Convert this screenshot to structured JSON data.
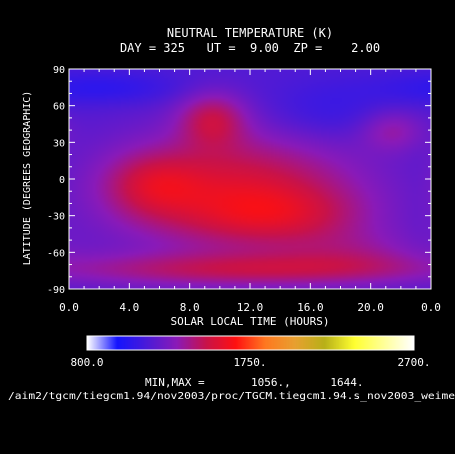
{
  "chart_data": {
    "type": "heatmap",
    "title": "NEUTRAL TEMPERATURE (K)",
    "subtitle": "DAY = 325   UT =  9.00  ZP =    2.00",
    "xlabel": "SOLAR LOCAL TIME (HOURS)",
    "ylabel": "LATITUDE (DEGREES GEOGRAPHIC)",
    "xlim": [
      0,
      24
    ],
    "ylim": [
      -90,
      90
    ],
    "x_ticks": [
      "0.0",
      "4.0",
      "8.0",
      "12.0",
      "16.0",
      "20.0",
      "0.0"
    ],
    "x_tick_values": [
      0,
      4,
      8,
      12,
      16,
      20,
      24
    ],
    "y_ticks": [
      "90",
      "60",
      "30",
      "0",
      "-30",
      "-60",
      "-90"
    ],
    "y_tick_values": [
      90,
      60,
      30,
      0,
      -30,
      -60,
      -90
    ],
    "colorbar": {
      "min_label": "800.0",
      "mid_label": "1750.",
      "max_label": "2700.",
      "min": 800,
      "mid": 1750,
      "max": 2700,
      "colors": [
        "#ffffff",
        "#1414ff",
        "#4a1ad8",
        "#8a1ab8",
        "#c8124a",
        "#ff1010",
        "#ff7820",
        "#e8a030",
        "#b8b018",
        "#ffff30",
        "#ffff98",
        "#ffffff"
      ]
    },
    "minmax_text": "MIN,MAX =       1056.,      1644.",
    "min_value": 1056,
    "max_value": 1644,
    "footer_path": "/aim2/tgcm/tiegcm1.94/nov2003/proc/TGCM.tiegcm1.94.s_nov2003_weime",
    "field_features": [
      {
        "x": 11,
        "y": -10,
        "sx": 6,
        "sy": 35,
        "amp": 0.8
      },
      {
        "x": 14,
        "y": -30,
        "sx": 4,
        "sy": 16,
        "amp": 0.35
      },
      {
        "x": 9.5,
        "y": 50,
        "sx": 1.6,
        "sy": 16,
        "amp": 0.55
      },
      {
        "x": 5.5,
        "y": -5,
        "sx": 2.2,
        "sy": 18,
        "amp": 0.4
      },
      {
        "x": 12,
        "y": -75,
        "sx": 10,
        "sy": 10,
        "amp": 0.55
      },
      {
        "x": 19,
        "y": -60,
        "sx": 3.5,
        "sy": 14,
        "amp": 0.25
      },
      {
        "x": 21.5,
        "y": 40,
        "sx": 1.5,
        "sy": 12,
        "amp": 0.35
      },
      {
        "x": 2,
        "y": 75,
        "sx": 4,
        "sy": 10,
        "amp": -0.25
      },
      {
        "x": 17,
        "y": 55,
        "sx": 3,
        "sy": 18,
        "amp": -0.2
      }
    ]
  }
}
